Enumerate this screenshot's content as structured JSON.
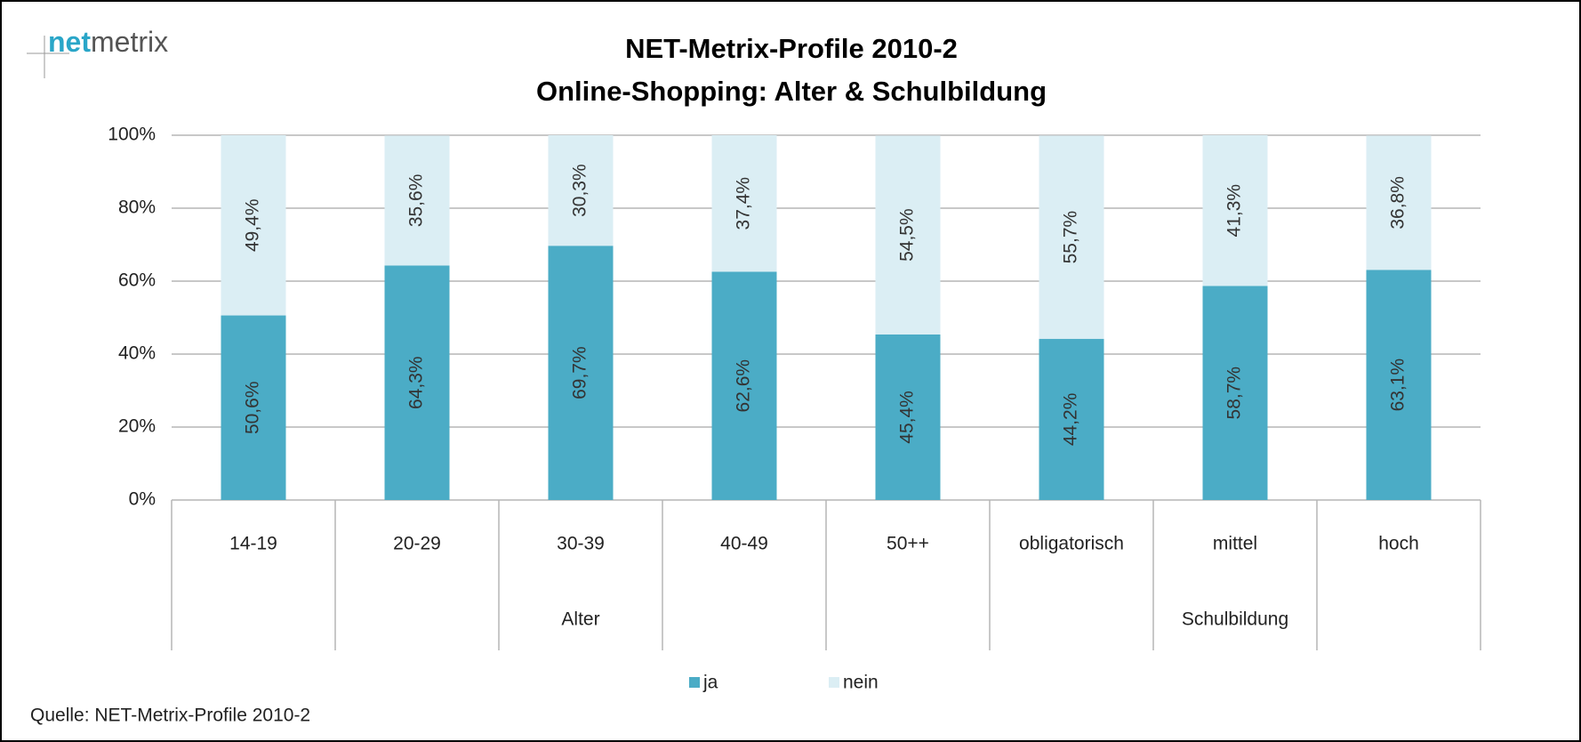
{
  "logo": {
    "strong": "net",
    "rest": "metrix"
  },
  "source": "Quelle: NET-Metrix-Profile 2010-2",
  "chart_data": {
    "type": "stacked_bar",
    "title": [
      "NET-Metrix-Profile 2010-2",
      "Online-Shopping: Alter & Schulbildung"
    ],
    "categories": [
      "14-19",
      "20-29",
      "30-39",
      "40-49",
      "50++",
      "obligatorisch",
      "mittel",
      "hoch"
    ],
    "groups": [
      "Alter",
      "Alter",
      "Alter",
      "Alter",
      "Alter",
      "Schulbildung",
      "Schulbildung",
      "Schulbildung"
    ],
    "series": [
      {
        "name": "ja",
        "color": "#4bacc6",
        "values": [
          50.6,
          64.3,
          69.7,
          62.6,
          45.4,
          44.2,
          58.7,
          63.1
        ],
        "value_labels": [
          "50,6%",
          "64,3%",
          "69,7%",
          "62,6%",
          "45,4%",
          "44,2%",
          "58,7%",
          "63,1%"
        ]
      },
      {
        "name": "nein",
        "color": "#dbeef4",
        "values": [
          49.4,
          35.6,
          30.3,
          37.4,
          54.5,
          55.7,
          41.3,
          36.8
        ],
        "value_labels": [
          "49,4%",
          "35,6%",
          "30,3%",
          "37,4%",
          "54,5%",
          "55,7%",
          "41,3%",
          "36,8%"
        ]
      }
    ],
    "ylim": [
      0,
      100
    ],
    "yticks": [
      {
        "value": 0,
        "label": "0%"
      },
      {
        "value": 20,
        "label": "20%"
      },
      {
        "value": 40,
        "label": "40%"
      },
      {
        "value": 60,
        "label": "60%"
      },
      {
        "value": 80,
        "label": "80%"
      },
      {
        "value": 100,
        "label": "100%"
      }
    ],
    "grid": true,
    "legend": "bottom"
  }
}
